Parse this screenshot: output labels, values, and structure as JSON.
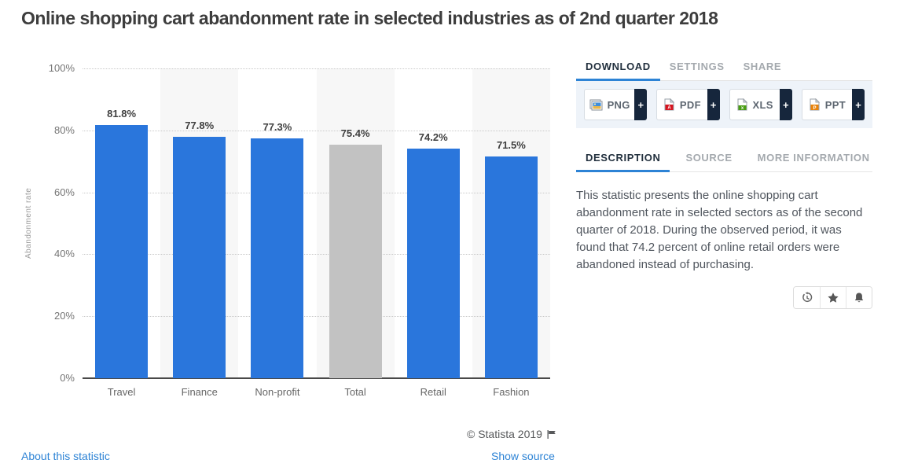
{
  "page": {
    "title": "Online shopping cart abandonment rate in selected industries as of 2nd quarter 2018"
  },
  "chart_data": {
    "type": "bar",
    "title": "Online shopping cart abandonment rate in selected industries as of 2nd quarter 2018",
    "categories": [
      "Travel",
      "Finance",
      "Non-profit",
      "Total",
      "Retail",
      "Fashion"
    ],
    "values": [
      81.8,
      77.8,
      77.3,
      75.4,
      74.2,
      71.5
    ],
    "data_labels": [
      "81.8%",
      "77.8%",
      "77.3%",
      "75.4%",
      "74.2%",
      "71.5%"
    ],
    "ylabel": "Abandonment rate",
    "xlabel": "",
    "ylim": [
      0,
      100
    ],
    "yticks": [
      "0%",
      "20%",
      "40%",
      "60%",
      "80%",
      "100%"
    ],
    "grid": "horizontal-dotted",
    "legend": "none",
    "bar_color": "#2a76dc",
    "muted_bar_color": "#c2c2c2",
    "muted_category": "Total",
    "alternating_column_band_color": "#f7f7f7"
  },
  "download_panel": {
    "tabs": [
      {
        "label": "DOWNLOAD",
        "active": true
      },
      {
        "label": "SETTINGS",
        "active": false
      },
      {
        "label": "SHARE",
        "active": false
      }
    ],
    "buttons": [
      {
        "label": "PNG",
        "plus": "+"
      },
      {
        "label": "PDF",
        "plus": "+"
      },
      {
        "label": "XLS",
        "plus": "+"
      },
      {
        "label": "PPT",
        "plus": "+"
      }
    ]
  },
  "info_panel": {
    "tabs": [
      {
        "label": "DESCRIPTION",
        "active": true
      },
      {
        "label": "SOURCE",
        "active": false
      },
      {
        "label": "MORE INFORMATION",
        "active": false
      }
    ],
    "description": "This statistic presents the online shopping cart abandonment rate in selected sectors as of the second quarter of 2018. During the observed period, it was found that 74.2 percent of online retail orders were abandoned instead of purchasing.",
    "actions": [
      "history",
      "favorite",
      "notifications"
    ]
  },
  "footer": {
    "copyright": "© Statista 2019",
    "about_link": "About this statistic",
    "source_link": "Show source"
  },
  "colors": {
    "accent_blue": "#2d83d5",
    "bar_blue": "#2a76dc",
    "bar_gray": "#c2c2c2",
    "navy": "#16263c",
    "strip_bg": "#eef3f9"
  }
}
